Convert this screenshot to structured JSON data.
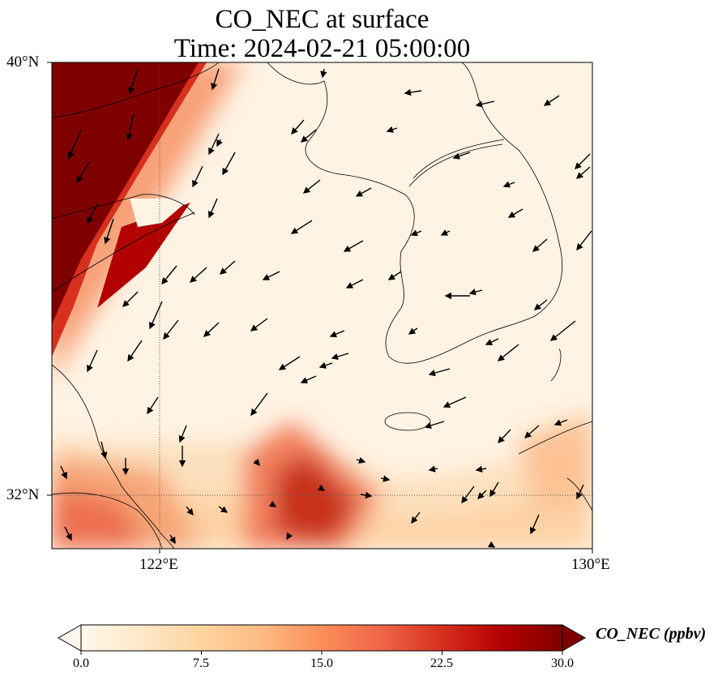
{
  "title": {
    "line1": "CO_NEC at surface",
    "line2": "Time: 2024-02-21 05:00:00"
  },
  "axes": {
    "lat_labels": [
      "40°N",
      "32°N"
    ],
    "lon_labels": [
      "122°E",
      "130°E"
    ],
    "extent": {
      "lon": [
        120,
        130
      ],
      "lat": [
        31,
        40
      ]
    },
    "gridlines": {
      "lon": 122,
      "lat": 32,
      "style": "dotted"
    }
  },
  "colorbar": {
    "label": "CO_NEC (ppbv)",
    "ticks": [
      "0.0",
      "7.5",
      "15.0",
      "22.5",
      "30.0"
    ],
    "range": [
      0,
      30
    ],
    "extend": "both",
    "colormap": [
      "#fff7ec",
      "#fee8c8",
      "#fdd49e",
      "#fdbb84",
      "#fc8d59",
      "#ef6548",
      "#d7301f",
      "#b30000",
      "#7f0000"
    ]
  },
  "chart_data": {
    "type": "heatmap",
    "variable": "CO_NEC",
    "units": "ppbv",
    "level": "surface",
    "time": "2024-02-21 05:00:00",
    "high_concentration_regions": [
      {
        "region": "northwest coast (Shandong / Bohai)",
        "approx_value": 30
      },
      {
        "region": "central Yellow Sea plume near 125°E 32°N",
        "approx_value": 22
      },
      {
        "region": "southwest corner near Shanghai",
        "approx_value": 15
      },
      {
        "region": "southeast corner near Kyushu",
        "approx_value": 8
      }
    ],
    "background_value": 1,
    "wind_vectors": "predominantly north-easterly to south-westward flow"
  }
}
